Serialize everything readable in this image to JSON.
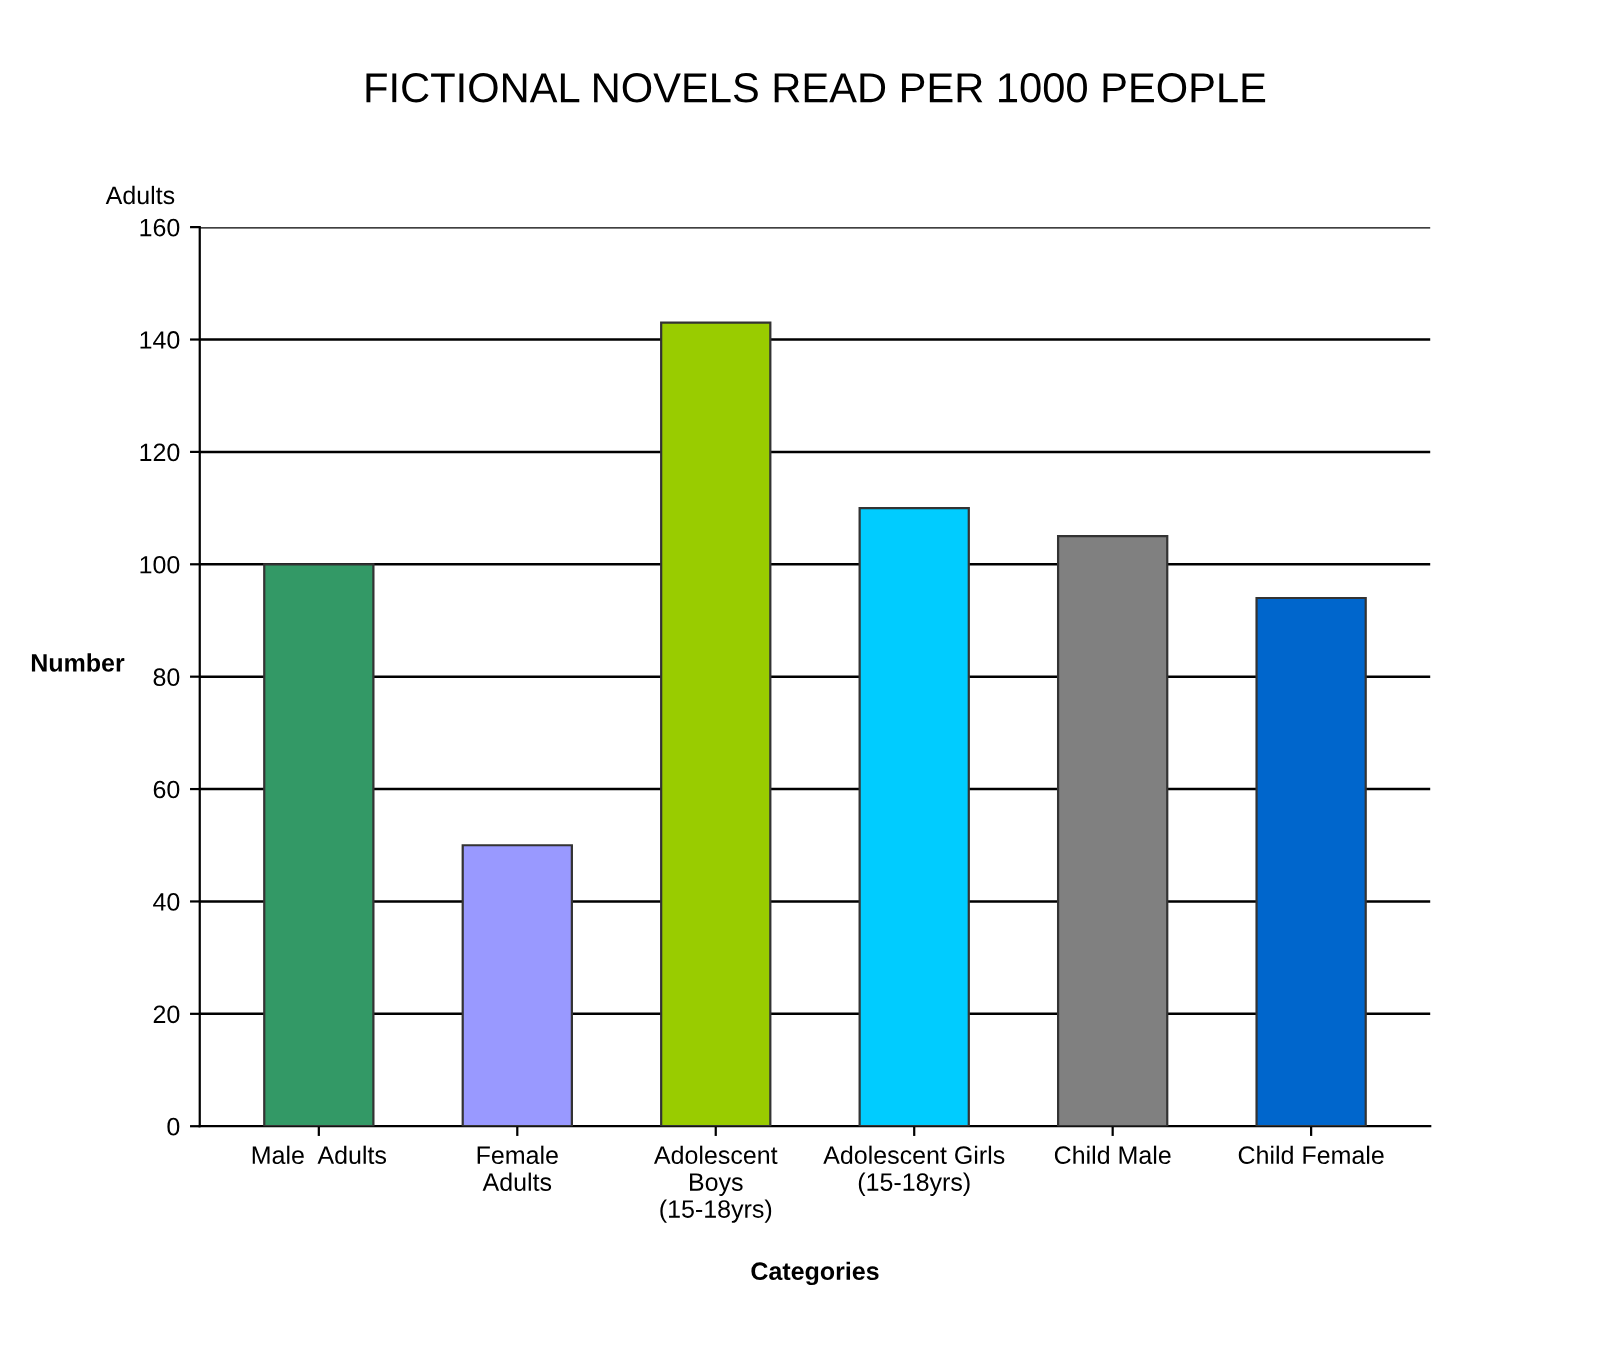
{
  "chart_data": {
    "type": "bar",
    "title": "FICTIONAL NOVELS READ PER 1000 PEOPLE",
    "xlabel": "Categories",
    "ylabel": "Number",
    "categories": [
      "Male  Adults",
      "Female\nAdults",
      "Adolescent\nBoys\n(15-18yrs)",
      "Adolescent Girls\n(15-18yrs)",
      "Child Male",
      "Child Female"
    ],
    "values": [
      100,
      50,
      143,
      110,
      105,
      94
    ],
    "colors": [
      "#339966",
      "#9999ff",
      "#99cc00",
      "#00ccff",
      "#808080",
      "#0066cc"
    ],
    "ylim": [
      0,
      160
    ],
    "yticks": [
      0,
      20,
      40,
      60,
      80,
      100,
      120,
      140,
      160
    ],
    "grid": "y",
    "annotations": [
      "Adults"
    ]
  }
}
